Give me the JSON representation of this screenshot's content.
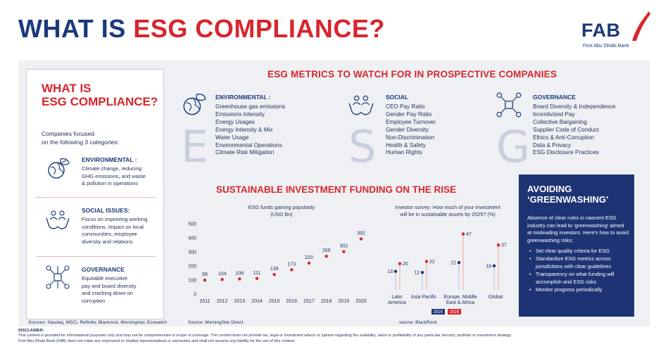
{
  "header": {
    "title_part1": "WHAT IS ",
    "title_part2": "ESG COMPLIANCE?",
    "logo_text": "FAB",
    "logo_sub": "First Abu Dhabi Bank"
  },
  "left_box": {
    "title_line1": "WHAT IS",
    "title_line2": "ESG COMPLIANCE?",
    "intro_line1": "Companies focused",
    "intro_line2": "on the following 3 categories:",
    "categories": [
      {
        "heading": "ENVIRONMENTAL :",
        "lines": [
          "Climate change,  reducing",
          "GHG emissions, and waste",
          "& pollution in operations"
        ],
        "icon": "globe-leaf-icon"
      },
      {
        "heading": "SOCIAL ISSUES:",
        "lines": [
          "Focus on improving working",
          "conditions, impact on local",
          "communities, employee",
          "diversity and relations"
        ],
        "icon": "hands-people-icon"
      },
      {
        "heading": "GOVERNANCE",
        "lines": [
          "Equitable executive",
          "pay and board diversity",
          "and cracking down on",
          "corruption"
        ],
        "icon": "network-icon"
      }
    ],
    "sources": "Sources: Nasdaq, MSCI, Refinitiv, Blackrock, Morningstar, Ecowatch"
  },
  "metrics": {
    "title": "ESG METRICS TO WATCH FOR IN PROSPECTIVE COMPANIES",
    "columns": [
      {
        "heading": "ENVIRONMENTAL :",
        "letter": "E",
        "icon": "globe-leaf-icon",
        "items": [
          "Greenhouse gas emissions",
          "Emissions Intensity",
          "Energy Usages",
          "Energy Intensity & Mix",
          "Water Usage",
          "Environmental Operations",
          "Climate Risk Mitigation"
        ]
      },
      {
        "heading": "SOCIAL",
        "letter": "S",
        "icon": "hands-people-icon",
        "items": [
          "CEO Pay Ratio",
          "Gender Pay Ratio",
          "Employee Turnover",
          "Gender Diversity",
          "Non-Discrimination",
          "Health & Safety",
          "Human Rights"
        ]
      },
      {
        "heading": "GOVERNANCE",
        "letter": "G",
        "icon": "network-icon",
        "items": [
          "Board Diversity & Independence",
          "Incentivized Pay",
          "Collective Bargaining",
          "Supplier Code of Conduct",
          "Ethics & Anti-Corruption",
          "Data & Privacy",
          "ESG Disclosure Practices"
        ]
      }
    ]
  },
  "funding": {
    "title": "SUSTAINABLE INVESTMENT FUNDING ON THE RISE",
    "source1": "Source: MorningStar Direct",
    "source2": "source: BlackRock"
  },
  "chart_data": [
    {
      "type": "scatter",
      "title_line1": "ESG funds gaining popularity",
      "title_line2": "(USD Bn)",
      "x": [
        2011,
        2012,
        2013,
        2014,
        2015,
        2016,
        2017,
        2018,
        2019,
        2020
      ],
      "values": [
        99,
        104,
        108,
        111,
        139,
        173,
        220,
        269,
        302,
        392
      ],
      "yticks": [
        0,
        100,
        200,
        300,
        400,
        500
      ],
      "ylim": [
        0,
        500
      ],
      "color": "#d7262d"
    },
    {
      "type": "dumbbell",
      "title_line1": "Investor survey: How much of your investment",
      "title_line2": "will be in sustainable assets by 2025? (%)",
      "categories": [
        [
          "Latin",
          "America"
        ],
        [
          "Asia Pacific"
        ],
        [
          "Europe, Middle",
          "East & Africa"
        ],
        [
          "Global"
        ]
      ],
      "series": [
        {
          "name": "2020",
          "values": [
            13,
            12,
            21,
            18
          ],
          "color": "#1d3374"
        },
        {
          "name": "2025",
          "values": [
            20,
            22,
            47,
            37
          ],
          "color": "#d7262d"
        }
      ],
      "ylim": [
        0,
        55
      ]
    }
  ],
  "greenwashing": {
    "title_line1": "AVOIDING",
    "title_line2": "‘GREENWASHING’",
    "intro": "Absence of clear rules in nascent ESG industry can lead to ‘greenwashing’ aimed at misleading investors. Here’s how to avoid greenwashing risks:",
    "items": [
      "Set clear quality criteria for ESG",
      "Standardize ESG metrics across jurisdictions with clear guidelines",
      "Transparency on what funding will accomplish and ESG risks",
      "Monitor progress periodically"
    ]
  },
  "disclaimer": {
    "label": "DISCLAIMER:",
    "line1": "This content is provided for informational purposes only and may not be comprehensive in scope or coverage. The content does not provide tax, legal or investment advice or opinion regarding the suitability, value or profitability of any particular security, portfolio or investment strategy.",
    "line2": "First Abu Dhabi Bank (FAB) does not make any expressed or implied representations or warranties and shall not assume any liability for the use of this content."
  }
}
